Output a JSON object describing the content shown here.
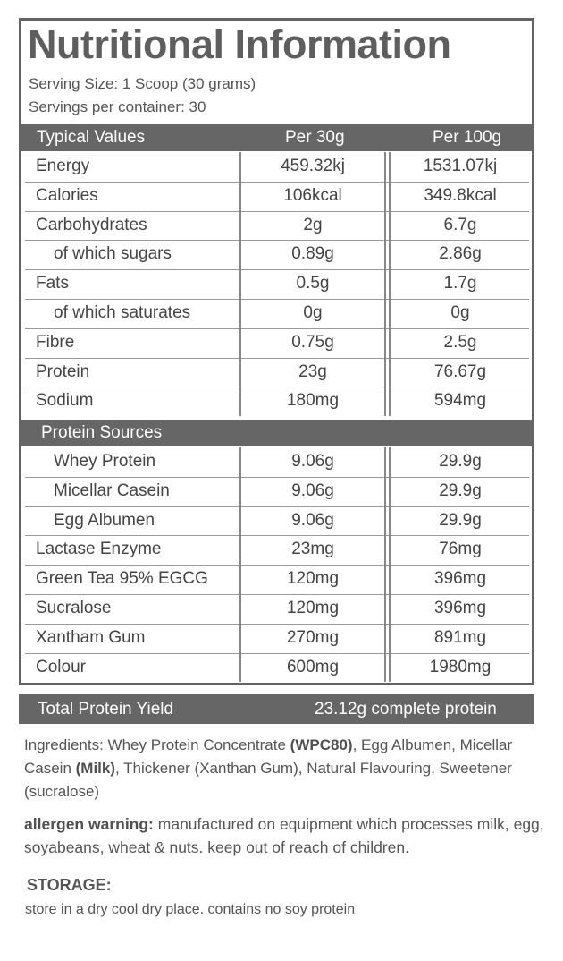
{
  "title": "Nutritional Information",
  "serving_size": "Serving Size: 1 Scoop (30 grams)",
  "servings_per_container": "Servings per container: 30",
  "header": {
    "col_name": "Typical Values",
    "col_per30": "Per 30g",
    "col_per100": "Per 100g"
  },
  "nutrients": [
    {
      "name": "Energy",
      "per30": "459.32kj",
      "per100": "1531.07kj",
      "indent": false
    },
    {
      "name": "Calories",
      "per30": "106kcal",
      "per100": "349.8kcal",
      "indent": false
    },
    {
      "name": "Carbohydrates",
      "per30": "2g",
      "per100": "6.7g",
      "indent": false
    },
    {
      "name": "of which sugars",
      "per30": "0.89g",
      "per100": "2.86g",
      "indent": true
    },
    {
      "name": "Fats",
      "per30": "0.5g",
      "per100": "1.7g",
      "indent": false
    },
    {
      "name": "of which saturates",
      "per30": "0g",
      "per100": "0g",
      "indent": true
    },
    {
      "name": "Fibre",
      "per30": "0.75g",
      "per100": "2.5g",
      "indent": false
    },
    {
      "name": "Protein",
      "per30": "23g",
      "per100": "76.67g",
      "indent": false
    },
    {
      "name": "Sodium",
      "per30": "180mg",
      "per100": "594mg",
      "indent": false
    }
  ],
  "protein_sources_header": "Protein Sources",
  "protein_sources": [
    {
      "name": "Whey Protein",
      "per30": "9.06g",
      "per100": "29.9g",
      "indent": true
    },
    {
      "name": "Micellar Casein",
      "per30": "9.06g",
      "per100": "29.9g",
      "indent": true
    },
    {
      "name": "Egg Albumen",
      "per30": "9.06g",
      "per100": "29.9g",
      "indent": true
    },
    {
      "name": "Lactase Enzyme",
      "per30": "23mg",
      "per100": "76mg",
      "indent": false
    },
    {
      "name": "Green Tea 95% EGCG",
      "per30": "120mg",
      "per100": "396mg",
      "indent": false
    },
    {
      "name": "Sucralose",
      "per30": "120mg",
      "per100": "396mg",
      "indent": false
    },
    {
      "name": "Xantham Gum",
      "per30": "270mg",
      "per100": "891mg",
      "indent": false
    },
    {
      "name": "Colour",
      "per30": "600mg",
      "per100": "1980mg",
      "indent": false
    }
  ],
  "total": {
    "label": "Total Protein Yield",
    "value": "23.12g complete protein"
  },
  "ingredients": {
    "t1": "Ingredients: Whey Protein Concentrate ",
    "b1": "(WPC80)",
    "t2": ", Egg Albumen, Micellar Casein ",
    "b2": "(Milk)",
    "t3": ", Thickener (Xanthan Gum), Natural Flavouring, Sweetener (sucralose)"
  },
  "allergen": {
    "label": "allergen warning:",
    "text": " manufactured on equipment which processes milk, egg, soyabeans, wheat & nuts. keep out of reach of children."
  },
  "storage": {
    "heading": "STORAGE:",
    "text": "store in a dry cool dry place. contains no soy protein"
  },
  "colors": {
    "header_bar": "#666666",
    "border": "#636363",
    "text": "#555555"
  }
}
